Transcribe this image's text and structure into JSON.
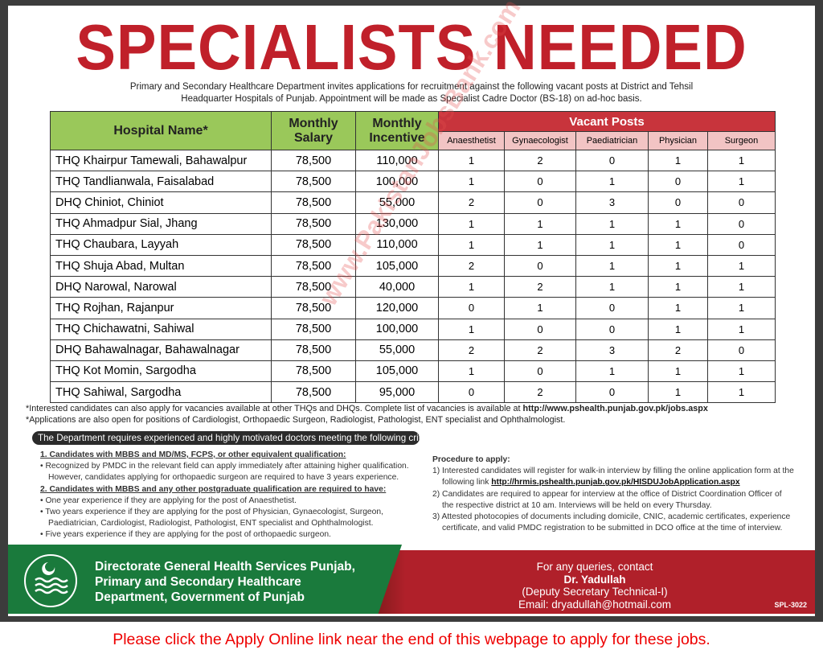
{
  "title": "SPECIALISTS NEEDED",
  "intro": "Primary and Secondary Healthcare Department invites applications for recruitment against the following vacant posts at District and Tehsil Headquarter Hospitals of Punjab. Appointment will be made as Specialist Cadre Doctor (BS-18) on ad-hoc basis.",
  "table": {
    "headers": {
      "hospital": "Hospital Name*",
      "salary": "Monthly Salary",
      "incentive": "Monthly Incentive",
      "vacant": "Vacant Posts",
      "posts": [
        "Anaesthetist",
        "Gynaecologist",
        "Paediatrician",
        "Physician",
        "Surgeon"
      ]
    },
    "rows": [
      {
        "hospital": "THQ Khairpur Tamewali, Bahawalpur",
        "salary": "78,500",
        "incentive": "110,000",
        "vacancies": [
          1,
          2,
          0,
          1,
          1
        ]
      },
      {
        "hospital": "THQ Tandlianwala, Faisalabad",
        "salary": "78,500",
        "incentive": "100,000",
        "vacancies": [
          1,
          0,
          1,
          0,
          1
        ]
      },
      {
        "hospital": "DHQ Chiniot, Chiniot",
        "salary": "78,500",
        "incentive": "55,000",
        "vacancies": [
          2,
          0,
          3,
          0,
          0
        ]
      },
      {
        "hospital": "THQ Ahmadpur Sial, Jhang",
        "salary": "78,500",
        "incentive": "130,000",
        "vacancies": [
          1,
          1,
          1,
          1,
          0
        ]
      },
      {
        "hospital": "THQ Chaubara, Layyah",
        "salary": "78,500",
        "incentive": "110,000",
        "vacancies": [
          1,
          1,
          1,
          1,
          0
        ]
      },
      {
        "hospital": "THQ Shuja Abad, Multan",
        "salary": "78,500",
        "incentive": "105,000",
        "vacancies": [
          2,
          0,
          1,
          1,
          1
        ]
      },
      {
        "hospital": "DHQ Narowal, Narowal",
        "salary": "78,500",
        "incentive": "40,000",
        "vacancies": [
          1,
          2,
          1,
          1,
          1
        ]
      },
      {
        "hospital": "THQ Rojhan, Rajanpur",
        "salary": "78,500",
        "incentive": "120,000",
        "vacancies": [
          0,
          1,
          0,
          1,
          1
        ]
      },
      {
        "hospital": "THQ Chichawatni, Sahiwal",
        "salary": "78,500",
        "incentive": "100,000",
        "vacancies": [
          1,
          0,
          0,
          1,
          1
        ]
      },
      {
        "hospital": "DHQ Bahawalnagar, Bahawalnagar",
        "salary": "78,500",
        "incentive": "55,000",
        "vacancies": [
          2,
          2,
          3,
          2,
          0
        ]
      },
      {
        "hospital": "THQ Kot Momin, Sargodha",
        "salary": "78,500",
        "incentive": "105,000",
        "vacancies": [
          1,
          0,
          1,
          1,
          1
        ]
      },
      {
        "hospital": "THQ Sahiwal, Sargodha",
        "salary": "78,500",
        "incentive": "95,000",
        "vacancies": [
          0,
          2,
          0,
          1,
          1
        ]
      }
    ]
  },
  "watermark": "www.PakistanJobsBank.com",
  "notes": {
    "note1": "*Interested candidates can also apply for vacancies available at other THQs and DHQs. Complete list of vacancies is available at ",
    "note1_link": "http://www.pshealth.punjab.gov.pk/jobs.aspx",
    "note2": "*Applications are also open for positions of Cardiologist, Orthopaedic Surgeon, Radiologist, Pathologist, ENT specialist and Ophthalmologist."
  },
  "criteria": {
    "bar": "The Department requires experienced and highly motivated doctors meeting the following criteria:",
    "h1": "1. Candidates with MBBS and MD/MS, FCPS, or other equivalent qualification:",
    "b1": "• Recognized by PMDC in the relevant field can apply immediately after attaining higher qualification. However, candidates applying for orthopaedic surgeon are required to have 3 years experience.",
    "h2": "2. Candidates with MBBS and any other postgraduate qualification are required to have:",
    "b2": "• One year experience if they are applying for the post of Anaesthetist.",
    "b3": "• Two years experience if they are applying for the post of Physician, Gynaecologist, Surgeon, Paediatrician, Cardiologist, Radiologist, Pathologist, ENT specialist and Ophthalmologist.",
    "b4": "• Five years experience if they are applying for the post of orthopaedic surgeon."
  },
  "procedure": {
    "title": "Procedure to apply:",
    "s1": "1) Interested candidates will register for walk-in interview by filling the online application form at the following link ",
    "s1_link": "http://hrmis.pshealth.punjab.gov.pk/HISDUJobApplication.aspx",
    "s2": "2) Candidates are required to appear for interview at the office of District Coordination Officer of the respective district at 10 am. Interviews will be held on every Thursday.",
    "s3": "3) Attested photocopies of documents including domicile, CNIC, academic certificates, experience certificate, and valid PMDC registration to be submitted in DCO office at the time of interview."
  },
  "footer": {
    "org1": "Directorate General Health Services Punjab,",
    "org2": "Primary and Secondary Healthcare",
    "org3": "Department, Government of Punjab",
    "contact_label": "For any queries, contact",
    "contact_name": "Dr. Yadullah",
    "contact_title": "(Deputy Secretary Technical-I)",
    "contact_email": "Email: dryadullah@hotmail.com",
    "ref": "SPL-3022"
  },
  "apply_notice": "Please click the Apply Online link near the end of this webpage to apply for these jobs.",
  "colors": {
    "red": "#c0202a",
    "green": "#1a7a3c",
    "header_green": "#9ac85a",
    "header_pink": "#f2c4c4"
  }
}
